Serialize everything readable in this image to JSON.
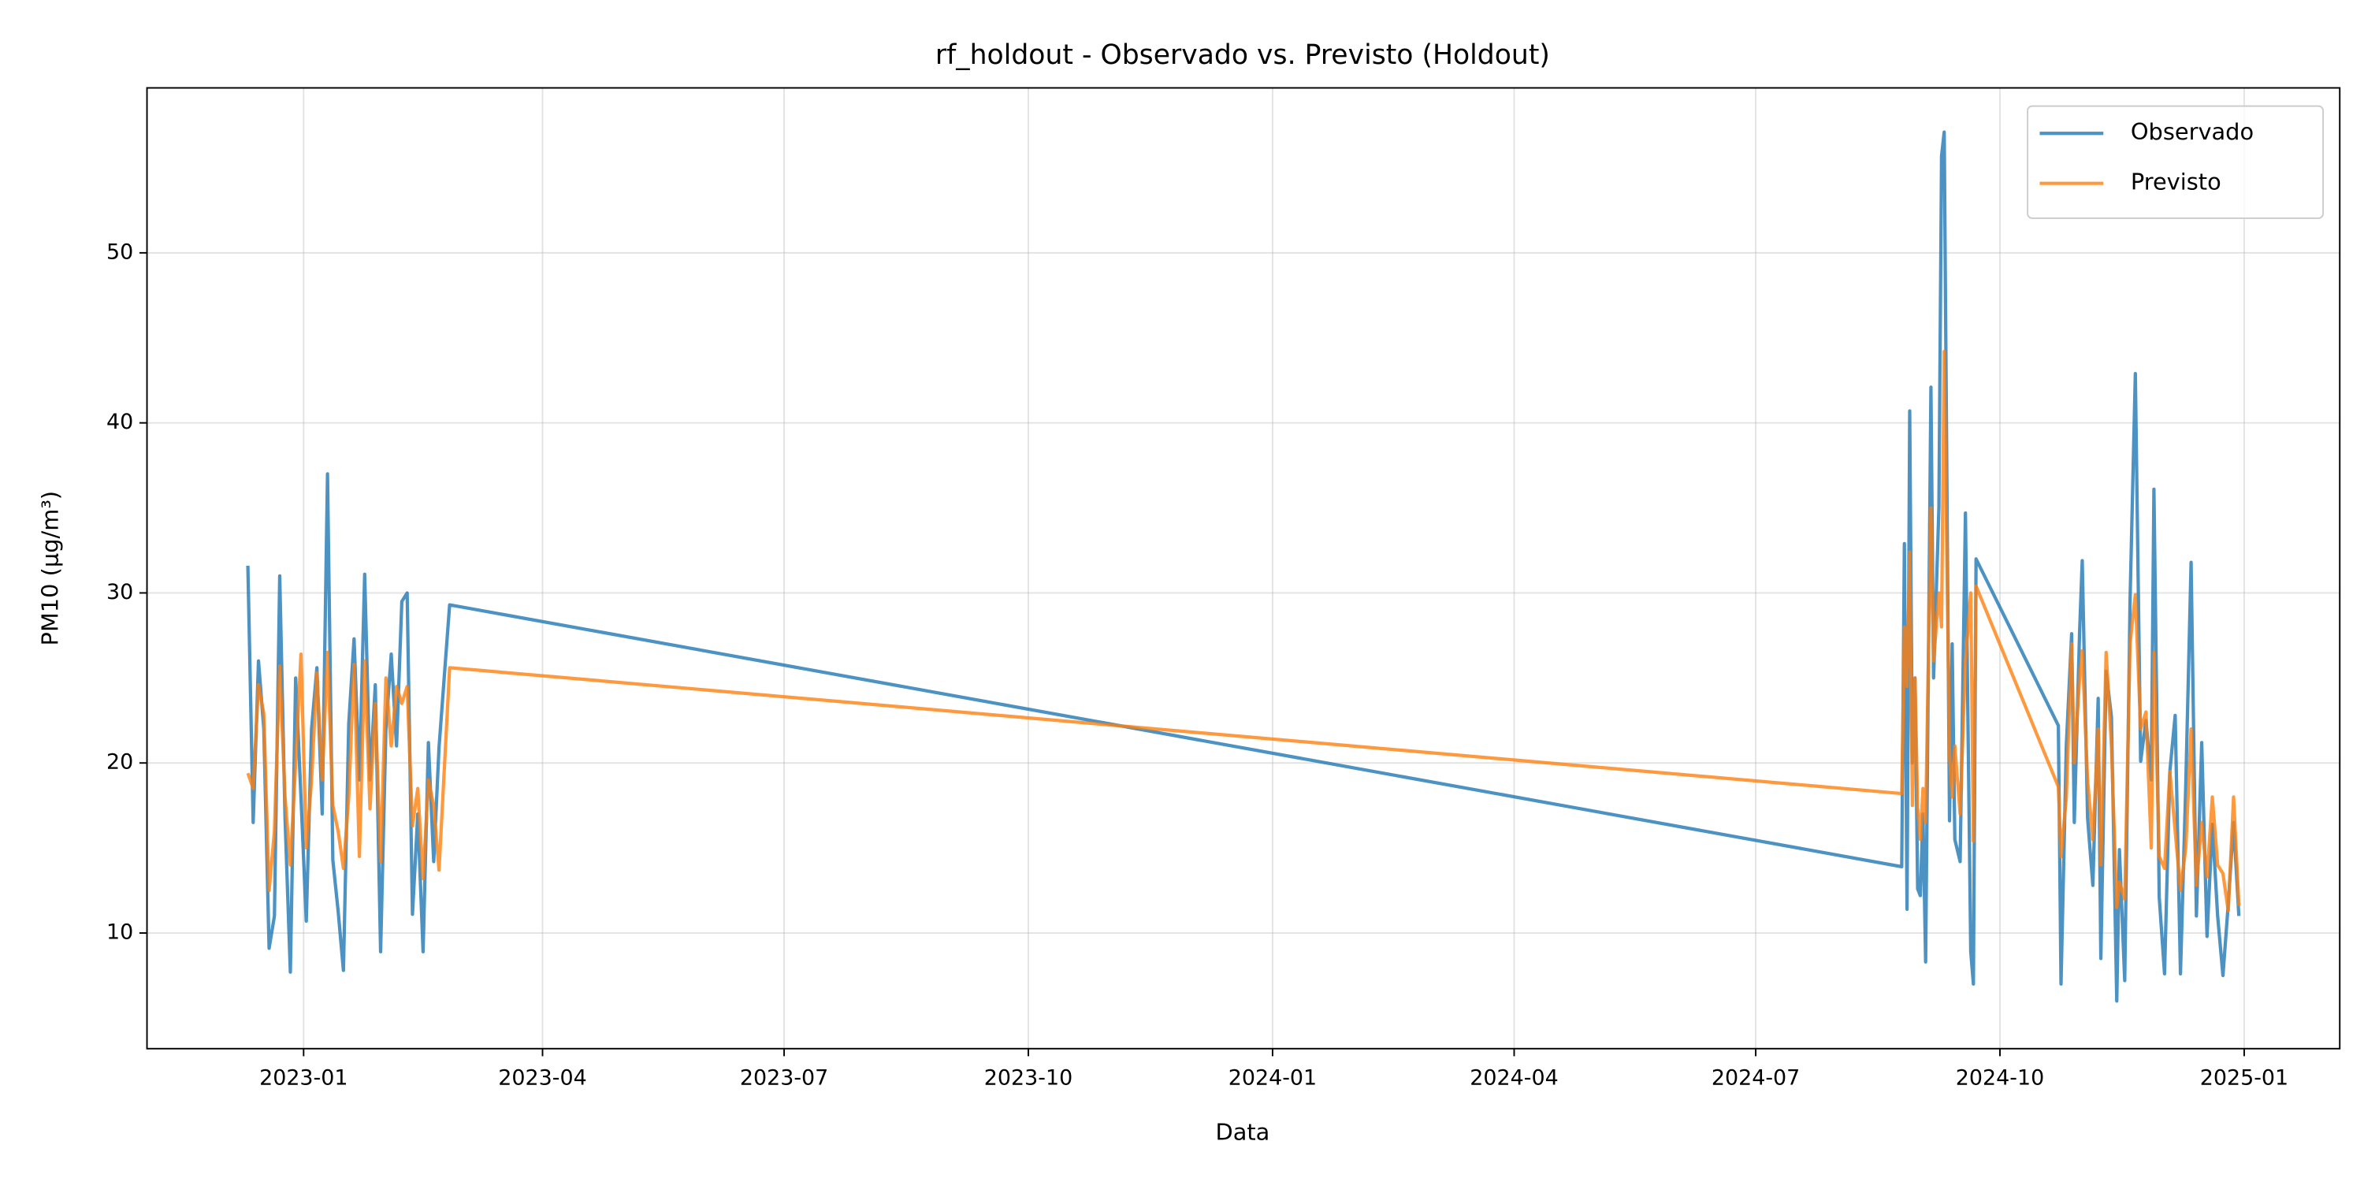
{
  "chart_data": {
    "type": "line",
    "title": "rf_holdout - Observado vs. Previsto (Holdout)",
    "xlabel": "Data",
    "ylabel": "PM10 (µg/m³)",
    "x": [
      "2022-12-11",
      "2022-12-13",
      "2022-12-15",
      "2022-12-17",
      "2022-12-19",
      "2022-12-21",
      "2022-12-23",
      "2022-12-25",
      "2022-12-27",
      "2022-12-29",
      "2022-12-31",
      "2023-01-02",
      "2023-01-04",
      "2023-01-06",
      "2023-01-08",
      "2023-01-10",
      "2023-01-12",
      "2023-01-14",
      "2023-01-16",
      "2023-01-18",
      "2023-01-20",
      "2023-01-22",
      "2023-01-24",
      "2023-01-26",
      "2023-01-28",
      "2023-01-30",
      "2023-02-01",
      "2023-02-03",
      "2023-02-05",
      "2023-02-07",
      "2023-02-09",
      "2023-02-11",
      "2023-02-13",
      "2023-02-15",
      "2023-02-17",
      "2023-02-19",
      "2023-02-21",
      "2023-02-25",
      "2024-08-25",
      "2024-08-26",
      "2024-08-27",
      "2024-08-28",
      "2024-08-29",
      "2024-08-30",
      "2024-08-31",
      "2024-09-01",
      "2024-09-02",
      "2024-09-03",
      "2024-09-05",
      "2024-09-06",
      "2024-09-08",
      "2024-09-09",
      "2024-09-10",
      "2024-09-12",
      "2024-09-13",
      "2024-09-14",
      "2024-09-16",
      "2024-09-18",
      "2024-09-20",
      "2024-09-21",
      "2024-09-22",
      "2024-10-23",
      "2024-10-24",
      "2024-10-26",
      "2024-10-28",
      "2024-10-29",
      "2024-10-31",
      "2024-11-01",
      "2024-11-03",
      "2024-11-05",
      "2024-11-07",
      "2024-11-08",
      "2024-11-10",
      "2024-11-12",
      "2024-11-14",
      "2024-11-15",
      "2024-11-17",
      "2024-11-19",
      "2024-11-21",
      "2024-11-23",
      "2024-11-25",
      "2024-11-27",
      "2024-11-28",
      "2024-11-30",
      "2024-12-02",
      "2024-12-04",
      "2024-12-06",
      "2024-12-08",
      "2024-12-10",
      "2024-12-12",
      "2024-12-14",
      "2024-12-16",
      "2024-12-18",
      "2024-12-20",
      "2024-12-22",
      "2024-12-24",
      "2024-12-26",
      "2024-12-28",
      "2024-12-30"
    ],
    "series": [
      {
        "name": "Observado",
        "color": "#1f77b4",
        "values": [
          31.6,
          16.5,
          26,
          22,
          9.1,
          11,
          31,
          16.8,
          7.7,
          25,
          18,
          10.7,
          22,
          25.6,
          17,
          37,
          14.3,
          11.3,
          7.8,
          22.3,
          27.3,
          19,
          31.1,
          19,
          24.6,
          8.9,
          22,
          26.4,
          21,
          29.5,
          30,
          11.1,
          17,
          8.9,
          21.2,
          14.2,
          20.9,
          29.3,
          13.9,
          32.9,
          11.4,
          40.7,
          20,
          25,
          12.6,
          12.2,
          17,
          8.3,
          42.1,
          25,
          35,
          55.7,
          57.1,
          16.6,
          27,
          15.5,
          14.2,
          34.7,
          8.9,
          7,
          32,
          22.2,
          7,
          21,
          27.6,
          16.5,
          27.7,
          31.9,
          16.8,
          12.8,
          23.8,
          8.5,
          25.4,
          22.7,
          6,
          14.9,
          7.2,
          29.5,
          42.9,
          20.1,
          22.5,
          19,
          36.1,
          12.1,
          7.6,
          19.5,
          22.8,
          7.6,
          18.7,
          31.8,
          11,
          21.2,
          9.8,
          16.4,
          11,
          7.5,
          11.7,
          16.5,
          11
        ]
      },
      {
        "name": "Previsto",
        "color": "#ff7f0e",
        "values": [
          19.4,
          18.5,
          24.6,
          22.9,
          12.5,
          16,
          25.7,
          18,
          14,
          20,
          26.4,
          15,
          19,
          25.3,
          19,
          26.5,
          17.5,
          16,
          13.8,
          18,
          25.8,
          14.5,
          26,
          17.3,
          23.5,
          14.2,
          25,
          21,
          24.5,
          23.5,
          24.5,
          16.3,
          18.5,
          13.2,
          19,
          17.5,
          13.7,
          25.6,
          18.2,
          28,
          24.5,
          32.4,
          17.5,
          25,
          17.4,
          15.5,
          18.5,
          16.5,
          35,
          26,
          30,
          28,
          44.2,
          20.5,
          18,
          21,
          17,
          26,
          30,
          15.4,
          30.4,
          18.6,
          14.5,
          18,
          27,
          20,
          25,
          26.6,
          19,
          15.5,
          22,
          14,
          26.5,
          21,
          11.5,
          13,
          12,
          27,
          29.9,
          22,
          23,
          15,
          26.5,
          14.5,
          13.8,
          19.5,
          16,
          12.5,
          15,
          22,
          12.8,
          16.5,
          13.3,
          18,
          14,
          13.5,
          11.3,
          18,
          11.6
        ]
      }
    ],
    "xlim": [
      "2022-11-03",
      "2025-02-06"
    ],
    "xticks": [
      {
        "value": "2023-01-01",
        "label": "2023-01"
      },
      {
        "value": "2023-04-01",
        "label": "2023-04"
      },
      {
        "value": "2023-07-01",
        "label": "2023-07"
      },
      {
        "value": "2023-10-01",
        "label": "2023-10"
      },
      {
        "value": "2024-01-01",
        "label": "2024-01"
      },
      {
        "value": "2024-04-01",
        "label": "2024-04"
      },
      {
        "value": "2024-07-01",
        "label": "2024-07"
      },
      {
        "value": "2024-10-01",
        "label": "2024-10"
      },
      {
        "value": "2025-01-01",
        "label": "2025-01"
      }
    ],
    "ylim": [
      3.2,
      59.7
    ],
    "yticks": [
      10,
      20,
      30,
      40,
      50
    ],
    "grid": true,
    "legend": "upper right"
  }
}
